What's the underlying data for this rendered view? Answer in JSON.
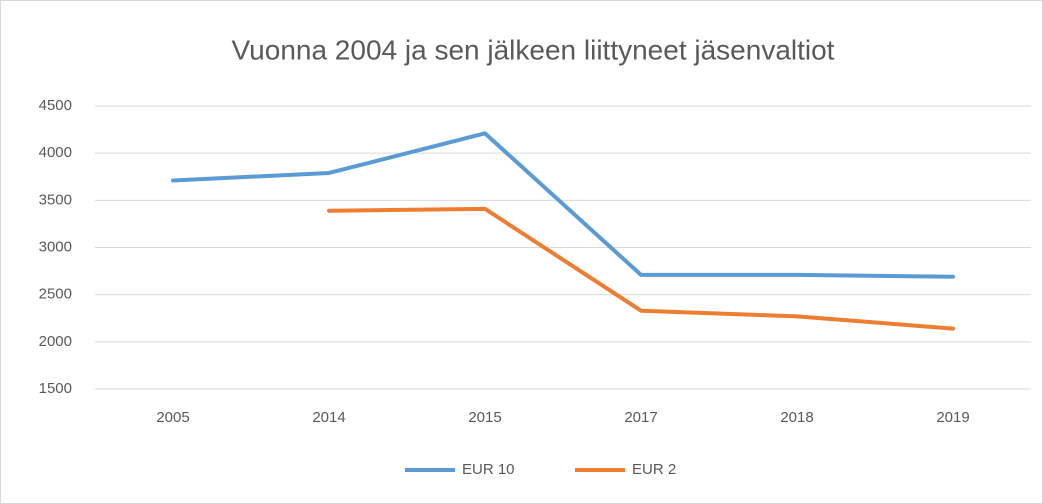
{
  "chart_data": {
    "type": "line",
    "title": "Vuonna 2004 ja sen jälkeen liittyneet jäsenvaltiot",
    "categories": [
      "2005",
      "2014",
      "2015",
      "2017",
      "2018",
      "2019"
    ],
    "series": [
      {
        "name": "EUR 10",
        "color": "#5b9bd5",
        "values": [
          3710,
          3790,
          4210,
          2710,
          2710,
          2690
        ]
      },
      {
        "name": "EUR 2",
        "color": "#ed7d31",
        "values": [
          null,
          3390,
          3410,
          2330,
          2270,
          2140
        ]
      }
    ],
    "ylim": [
      1500,
      4500
    ],
    "yticks": [
      1500,
      2000,
      2500,
      3000,
      3500,
      4000,
      4500
    ],
    "grid": true,
    "legend": "bottom"
  }
}
